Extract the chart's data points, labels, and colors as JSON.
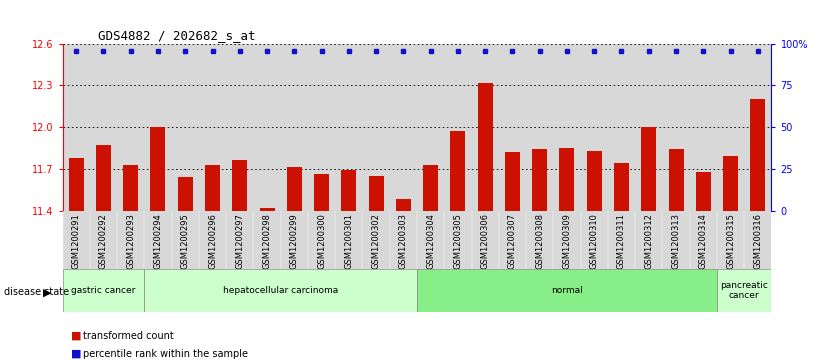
{
  "title": "GDS4882 / 202682_s_at",
  "samples": [
    "GSM1200291",
    "GSM1200292",
    "GSM1200293",
    "GSM1200294",
    "GSM1200295",
    "GSM1200296",
    "GSM1200297",
    "GSM1200298",
    "GSM1200299",
    "GSM1200300",
    "GSM1200301",
    "GSM1200302",
    "GSM1200303",
    "GSM1200304",
    "GSM1200305",
    "GSM1200306",
    "GSM1200307",
    "GSM1200308",
    "GSM1200309",
    "GSM1200310",
    "GSM1200311",
    "GSM1200312",
    "GSM1200313",
    "GSM1200314",
    "GSM1200315",
    "GSM1200316"
  ],
  "bar_values": [
    11.78,
    11.87,
    11.73,
    12.0,
    11.64,
    11.73,
    11.76,
    11.42,
    11.71,
    11.66,
    11.69,
    11.65,
    11.48,
    11.73,
    11.97,
    12.32,
    11.82,
    11.84,
    11.85,
    11.83,
    11.74,
    12.0,
    11.84,
    11.68,
    11.79,
    12.2
  ],
  "ylim_left": [
    11.4,
    12.6
  ],
  "ylim_right": [
    0,
    100
  ],
  "yticks_left": [
    11.4,
    11.7,
    12.0,
    12.3,
    12.6
  ],
  "yticks_right": [
    0,
    25,
    50,
    75,
    100
  ],
  "ytick_labels_right": [
    "0",
    "25",
    "50",
    "75",
    "100%"
  ],
  "bar_color": "#cc1100",
  "percentile_color": "#1111cc",
  "grid_color": "#000000",
  "bg_color": "#d8d8d8",
  "disease_groups": [
    {
      "label": "gastric cancer",
      "start": 0,
      "end": 3,
      "color": "#ccffcc"
    },
    {
      "label": "hepatocellular carcinoma",
      "start": 3,
      "end": 13,
      "color": "#ccffcc"
    },
    {
      "label": "normal",
      "start": 13,
      "end": 24,
      "color": "#88ee88"
    },
    {
      "label": "pancreatic\ncancer",
      "start": 24,
      "end": 26,
      "color": "#ccffcc"
    }
  ],
  "legend_bar_label": "transformed count",
  "legend_pct_label": "percentile rank within the sample",
  "disease_state_label": "disease state"
}
